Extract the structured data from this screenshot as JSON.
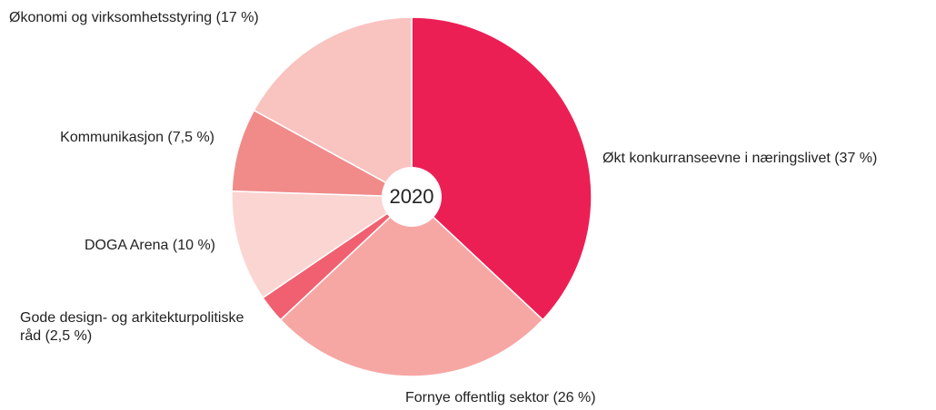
{
  "chart_data": {
    "type": "pie",
    "center_label": "2020",
    "categories": [
      "Økt konkurranseevne i næringslivet (37 %)",
      "Fornye offentlig sektor (26 %)",
      "Gode design- og arkitekturpolitiske råd (2,5 %)",
      "DOGA Arena (10 %)",
      "Kommunikasjon (7,5 %)",
      "Økonomi og virksomhetsstyring (17 %)"
    ],
    "values": [
      37,
      26,
      2.5,
      10,
      7.5,
      17
    ],
    "colors": [
      "#ec1f55",
      "#f6a7a4",
      "#f06070",
      "#fbd5d2",
      "#f08b8a",
      "#f9c3c0"
    ]
  }
}
